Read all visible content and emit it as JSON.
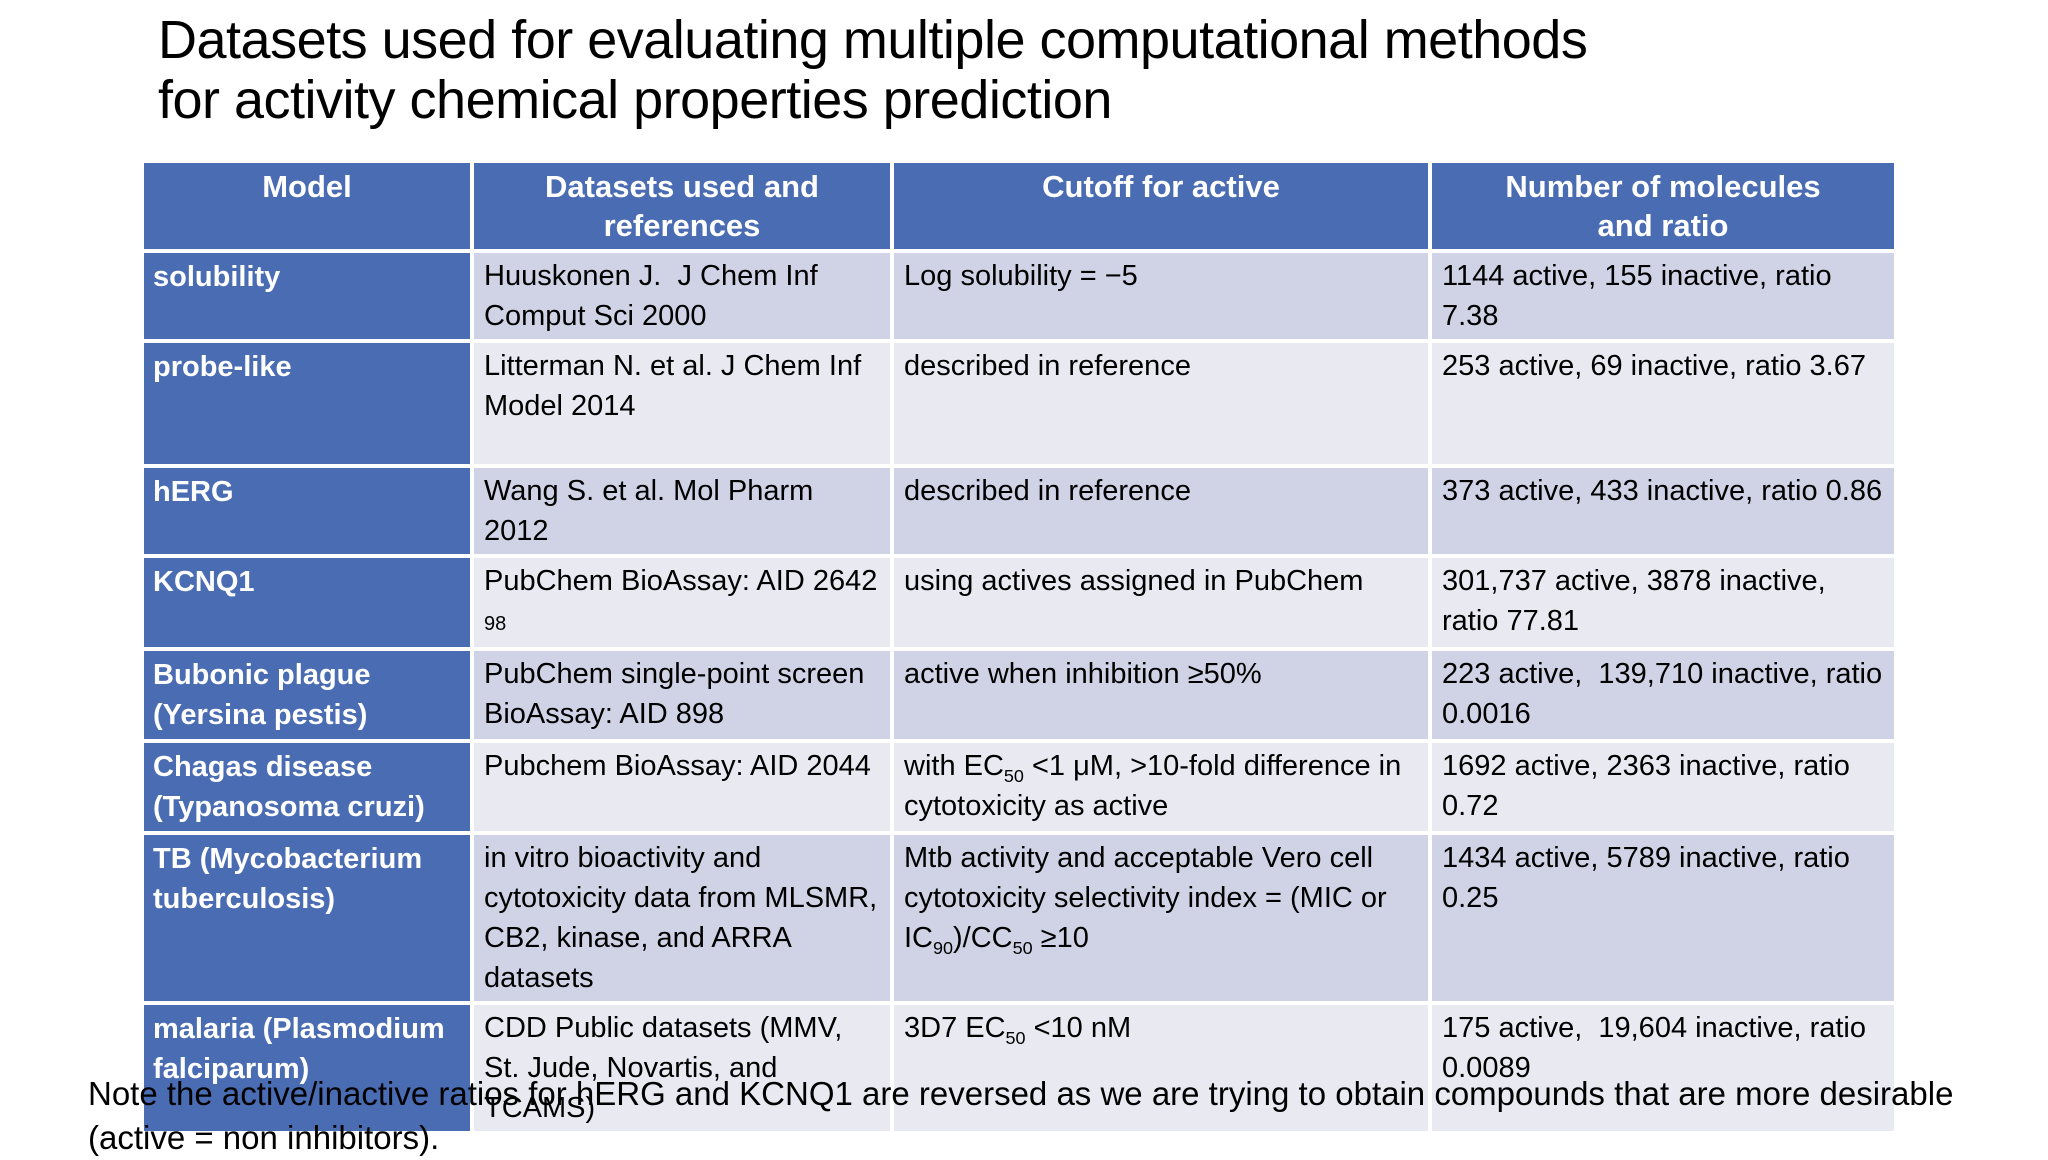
{
  "title": {
    "lines": [
      "Datasets used for evaluating multiple computational methods",
      "for activity chemical properties prediction"
    ]
  },
  "colors": {
    "header_blue": "#4A6CB3",
    "row_label_blue": "#4A6CB3",
    "band_dark": "#CFD3E5",
    "band_light": "#E9EAF1",
    "header_text": "#FFFFFF",
    "body_text": "#000000"
  },
  "table": {
    "columns": [
      "Model",
      "Datasets used and\nreferences",
      "Cutoff for active",
      "Number of molecules\nand ratio"
    ],
    "rows": [
      {
        "model": "solubility",
        "datasets": "Huuskonen J.  J Chem Inf Comput Sci 2000",
        "cutoff": "Log solubility = −5",
        "molecules": "1144 active, 155 inactive, ratio 7.38"
      },
      {
        "model": "probe-like",
        "datasets": "Litterman N. et al. J Chem Inf Model 2014",
        "cutoff": "described in reference",
        "molecules": "253 active, 69 inactive, ratio 3.67"
      },
      {
        "model": "hERG",
        "datasets": "Wang S. et al. Mol Pharm 2012",
        "cutoff": "described in reference",
        "molecules": "373 active, 433 inactive, ratio 0.86"
      },
      {
        "model": "KCNQ1",
        "datasets": "PubChem BioAssay: AID 2642\n~{98}",
        "cutoff": "using actives assigned in PubChem",
        "molecules": "301,737 active, 3878 inactive, ratio 77.81"
      },
      {
        "model": "Bubonic plague (Yersina pestis)",
        "datasets": "PubChem single-point screen BioAssay: AID 898",
        "cutoff": "active when inhibition ≥50%",
        "molecules": "223 active,  139,710 inactive, ratio 0.0016"
      },
      {
        "model": "Chagas disease (Typanosoma cruzi)",
        "datasets": "Pubchem BioAssay: AID 2044",
        "cutoff": "with EC_{50} <1 μM, >10-fold difference in cytotoxicity as active",
        "molecules": "1692 active, 2363 inactive, ratio 0.72"
      },
      {
        "model": "TB (Mycobacterium tuberculosis)",
        "datasets": "in vitro bioactivity and cytotoxicity data from MLSMR, CB2, kinase, and ARRA datasets",
        "cutoff": "Mtb activity and acceptable Vero cell cytotoxicity selectivity index = (MIC or IC_{90})/CC_{50} ≥10",
        "molecules": "1434 active, 5789 inactive, ratio 0.25"
      },
      {
        "model": "malaria (Plasmodium falciparum)",
        "datasets": "CDD Public datasets (MMV, St. Jude, Novartis, and TCAMS)",
        "cutoff": "3D7 EC_{50} <10 nM",
        "molecules": "175 active,  19,604 inactive, ratio 0.0089"
      }
    ]
  },
  "footnote": "Note the active/inactive ratios for hERG and KCNQ1 are reversed as we are trying to obtain compounds that are more desirable (active = non inhibitors)."
}
